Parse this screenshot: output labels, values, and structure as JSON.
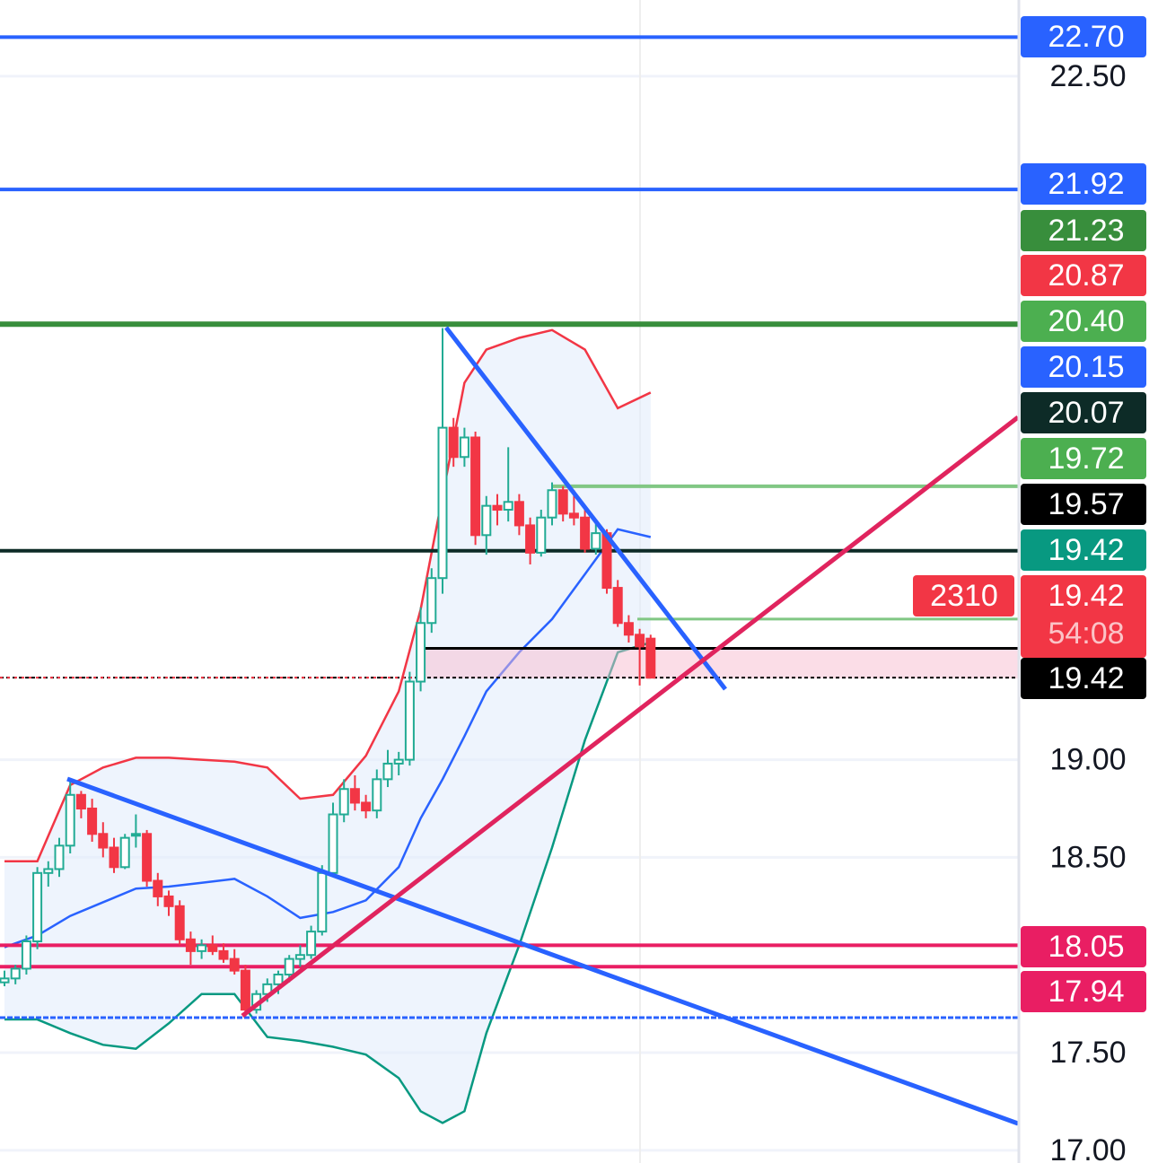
{
  "chart_data": {
    "type": "candlestick",
    "ylim": [
      16.935,
      22.89
    ],
    "yticks": [
      {
        "value": 22.5,
        "label": "22.50"
      },
      {
        "value": 19,
        "label": "19.00"
      },
      {
        "value": 18.5,
        "label": "18.50"
      },
      {
        "value": 17.5,
        "label": "17.50"
      },
      {
        "value": 17,
        "label": "17.00"
      }
    ],
    "grid": true,
    "up_color": "#22ab94",
    "down_color": "#f23645",
    "ohlc": [
      [
        17.86,
        17.92,
        17.84,
        17.88
      ],
      [
        17.88,
        17.95,
        17.85,
        17.93
      ],
      [
        17.93,
        18.1,
        17.9,
        18.07
      ],
      [
        18.07,
        18.45,
        18.03,
        18.42
      ],
      [
        18.42,
        18.48,
        18.35,
        18.44
      ],
      [
        18.44,
        18.6,
        18.4,
        18.56
      ],
      [
        18.56,
        18.9,
        18.52,
        18.82
      ],
      [
        18.82,
        18.84,
        18.7,
        18.75
      ],
      [
        18.75,
        18.8,
        18.58,
        18.62
      ],
      [
        18.62,
        18.68,
        18.5,
        18.55
      ],
      [
        18.55,
        18.6,
        18.42,
        18.45
      ],
      [
        18.45,
        18.62,
        18.44,
        18.6
      ],
      [
        18.62,
        18.72,
        18.55,
        18.62
      ],
      [
        18.62,
        18.64,
        18.35,
        18.38
      ],
      [
        18.38,
        18.42,
        18.25,
        18.3
      ],
      [
        18.3,
        18.33,
        18.2,
        18.25
      ],
      [
        18.25,
        18.28,
        18.05,
        18.08
      ],
      [
        18.08,
        18.12,
        17.95,
        18.02
      ],
      [
        18.02,
        18.08,
        17.98,
        18.05
      ],
      [
        18.05,
        18.1,
        18.0,
        18.02
      ],
      [
        18.02,
        18.06,
        17.96,
        17.98
      ],
      [
        17.98,
        18.03,
        17.9,
        17.92
      ],
      [
        17.92,
        17.95,
        17.68,
        17.72
      ],
      [
        17.72,
        17.82,
        17.7,
        17.8
      ],
      [
        17.8,
        17.88,
        17.76,
        17.85
      ],
      [
        17.85,
        17.92,
        17.8,
        17.9
      ],
      [
        17.9,
        18.0,
        17.86,
        17.98
      ],
      [
        17.98,
        18.05,
        17.94,
        18.0
      ],
      [
        18.0,
        18.15,
        17.98,
        18.12
      ],
      [
        18.12,
        18.46,
        18.1,
        18.42
      ],
      [
        18.42,
        18.78,
        18.4,
        18.72
      ],
      [
        18.72,
        18.9,
        18.68,
        18.85
      ],
      [
        18.85,
        18.92,
        18.74,
        18.78
      ],
      [
        18.78,
        18.82,
        18.7,
        18.74
      ],
      [
        18.74,
        18.95,
        18.7,
        18.9
      ],
      [
        18.9,
        19.05,
        18.86,
        18.98
      ],
      [
        18.98,
        19.04,
        18.92,
        19.0
      ],
      [
        19.0,
        19.45,
        18.97,
        19.4
      ],
      [
        19.4,
        19.78,
        19.35,
        19.7
      ],
      [
        19.7,
        19.98,
        19.65,
        19.93
      ],
      [
        19.93,
        21.21,
        19.85,
        20.7
      ],
      [
        20.7,
        20.75,
        20.5,
        20.55
      ],
      [
        20.55,
        20.7,
        20.5,
        20.65
      ],
      [
        20.65,
        20.68,
        20.1,
        20.15
      ],
      [
        20.15,
        20.35,
        20.05,
        20.3
      ],
      [
        20.3,
        20.36,
        20.2,
        20.28
      ],
      [
        20.28,
        20.6,
        20.22,
        20.32
      ],
      [
        20.32,
        20.36,
        20.15,
        20.2
      ],
      [
        20.2,
        20.24,
        20.0,
        20.06
      ],
      [
        20.06,
        20.28,
        20.04,
        20.24
      ],
      [
        20.24,
        20.42,
        20.2,
        20.38
      ],
      [
        20.38,
        20.4,
        20.22,
        20.26
      ],
      [
        20.26,
        20.38,
        20.2,
        20.24
      ],
      [
        20.24,
        20.28,
        20.06,
        20.08
      ],
      [
        20.08,
        20.22,
        20.05,
        20.16
      ],
      [
        20.16,
        20.18,
        19.85,
        19.88
      ],
      [
        19.88,
        19.92,
        19.68,
        19.7
      ],
      [
        19.7,
        19.74,
        19.6,
        19.64
      ],
      [
        19.64,
        19.67,
        19.38,
        19.58
      ],
      [
        19.62,
        19.64,
        19.42,
        19.42
      ]
    ],
    "bands": {
      "x": [
        0,
        3,
        6,
        9,
        12,
        15,
        18,
        21,
        24,
        27,
        30,
        33,
        36,
        38,
        40,
        42,
        44,
        47,
        50,
        53,
        56,
        59
      ],
      "upper": [
        18.48,
        18.48,
        18.87,
        18.96,
        19.01,
        19.01,
        19.0,
        18.99,
        18.96,
        18.8,
        18.82,
        19.02,
        19.35,
        19.77,
        20.35,
        20.93,
        21.1,
        21.16,
        21.2,
        21.1,
        20.8,
        20.88
      ],
      "middle": [
        18.04,
        18.1,
        18.2,
        18.27,
        18.34,
        18.35,
        18.37,
        18.39,
        18.3,
        18.19,
        18.22,
        18.28,
        18.45,
        18.7,
        18.9,
        19.12,
        19.35,
        19.55,
        19.72,
        19.95,
        20.18,
        20.14
      ],
      "lower": [
        17.67,
        17.67,
        17.6,
        17.54,
        17.52,
        17.65,
        17.8,
        17.8,
        17.58,
        17.56,
        17.53,
        17.49,
        17.37,
        17.2,
        17.14,
        17.2,
        17.6,
        18.05,
        18.55,
        19.1,
        19.55,
        19.6
      ],
      "upper_color": "#f23645",
      "middle_color": "#2962ff",
      "lower_color": "#089981",
      "fill": "#e3ecfb"
    },
    "price_tags": [
      {
        "value": 22.7,
        "label": "22.70",
        "color": "#2962ff"
      },
      {
        "value": 21.92,
        "label": "21.92",
        "color": "#2962ff"
      },
      {
        "value": 21.23,
        "label": "21.23",
        "color": "#388e3c"
      },
      {
        "value": 20.87,
        "label": "20.87",
        "color": "#f23645"
      },
      {
        "value": 20.4,
        "label": "20.40",
        "color": "#4caf50"
      },
      {
        "value": 20.15,
        "label": "20.15",
        "color": "#2962ff"
      },
      {
        "value": 20.07,
        "label": "20.07",
        "color": "#0d2b27"
      },
      {
        "value": 19.72,
        "label": "19.72",
        "color": "#4caf50"
      },
      {
        "value": 19.57,
        "label": "19.57",
        "color": "#000000"
      },
      {
        "value": 19.42,
        "label": "19.42",
        "color": "#089981"
      },
      {
        "value": 19.42,
        "label": "19.42",
        "color": "#f23645",
        "countdown": "54:08",
        "volume": 2310
      },
      {
        "value": 19.42,
        "label": "19.42",
        "color": "#000000"
      },
      {
        "value": 18.05,
        "label": "18.05",
        "color": "#e91e63"
      },
      {
        "value": 17.94,
        "label": "17.94",
        "color": "#e91e63"
      }
    ]
  }
}
